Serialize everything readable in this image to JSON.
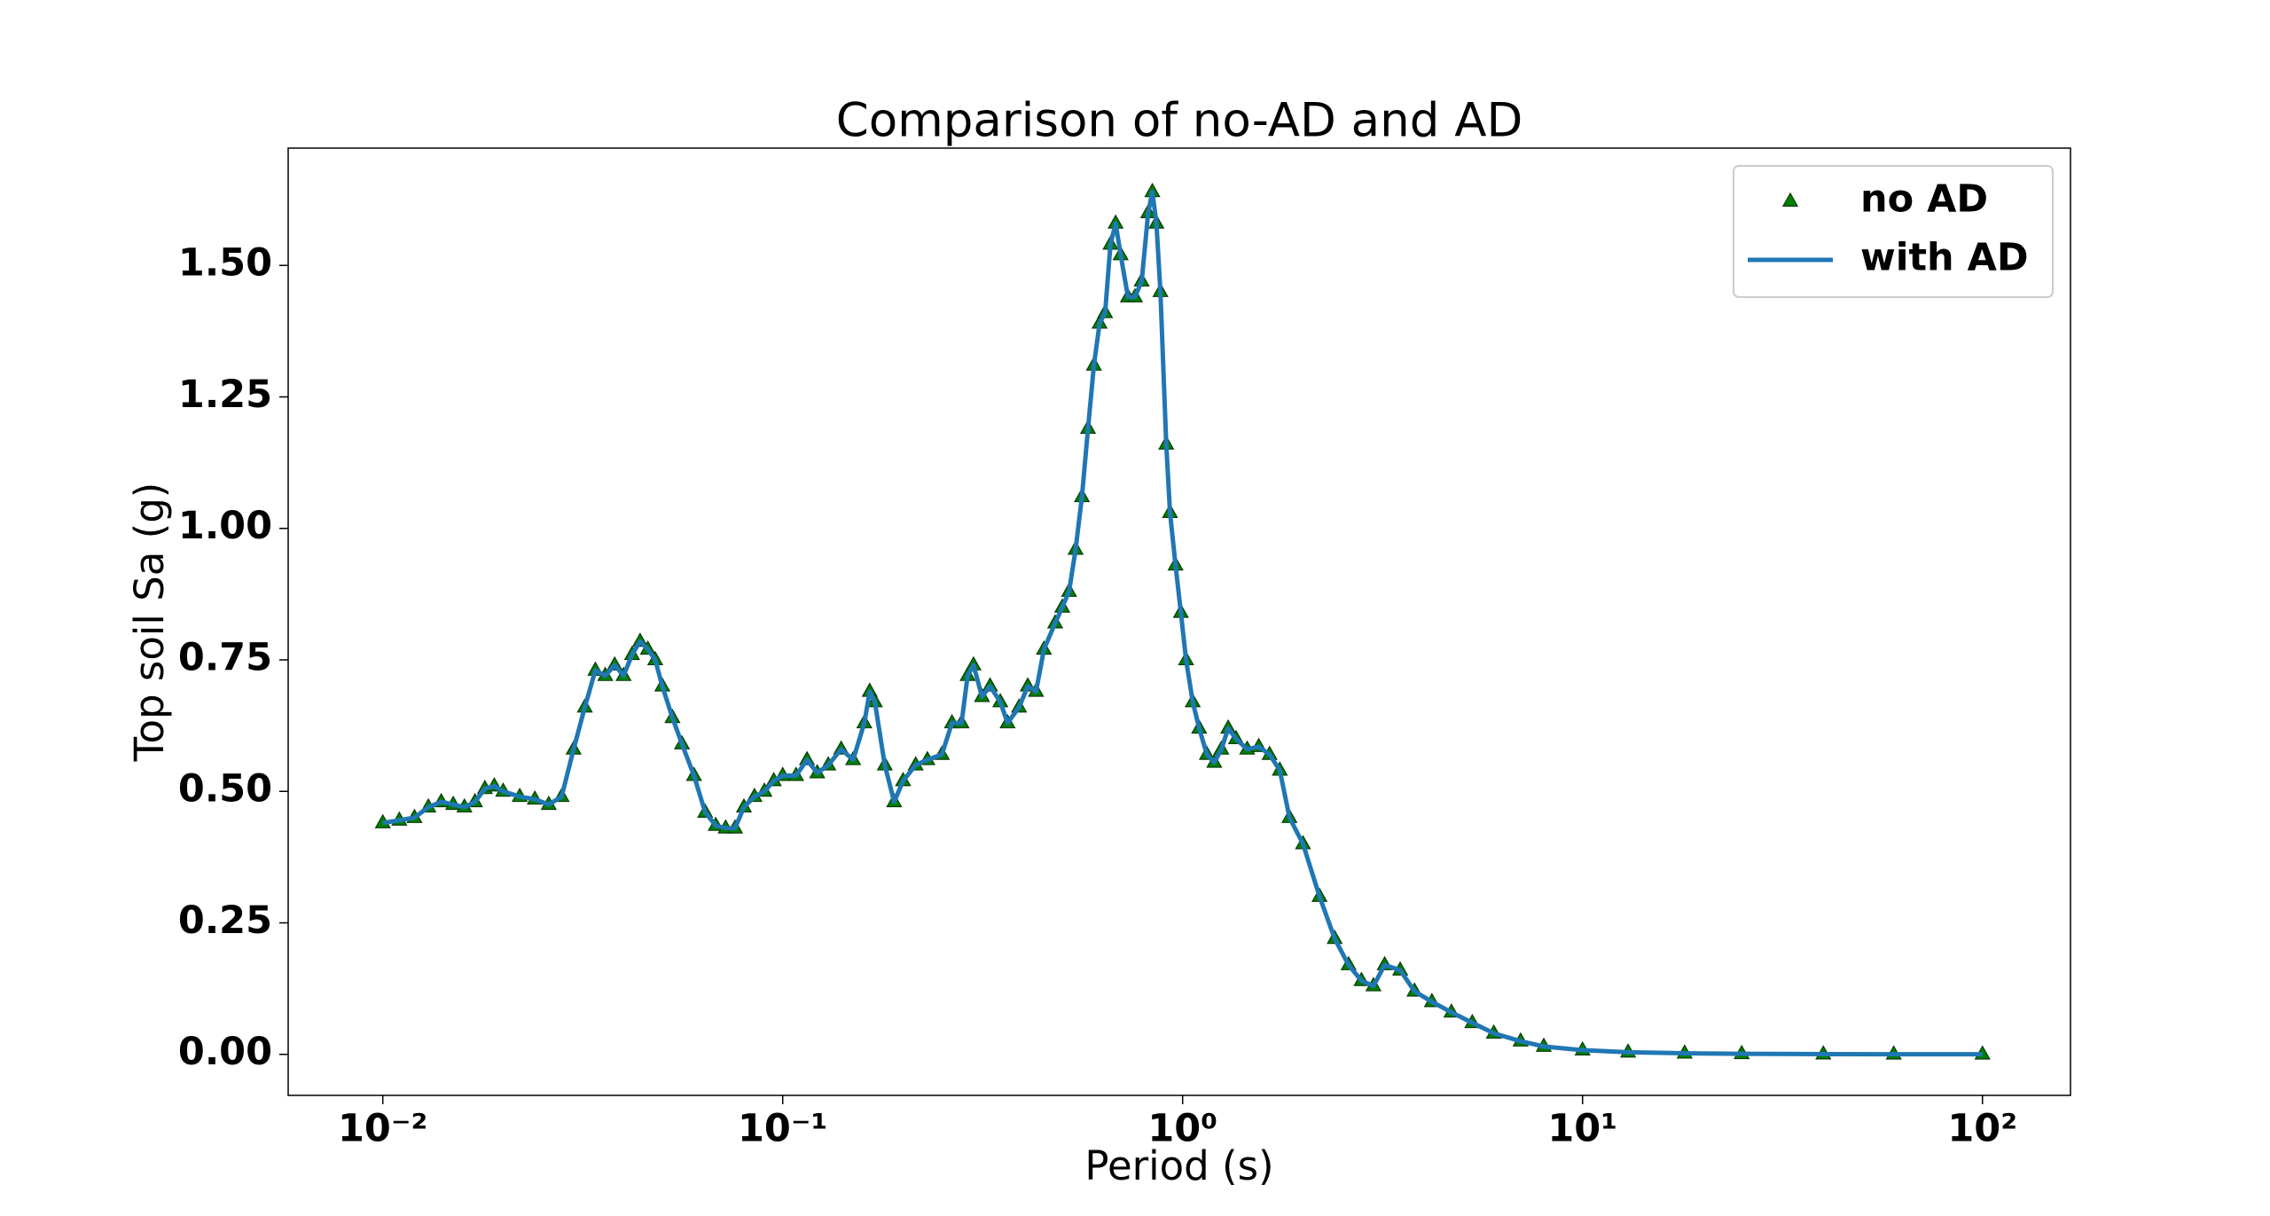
{
  "chart_data": {
    "type": "line",
    "title": "Comparison of no-AD and AD",
    "xlabel": "Period (s)",
    "ylabel": "Top soil Sa (g)",
    "xscale": "log",
    "legend": "upper right",
    "x": [
      0.01,
      0.011,
      0.012,
      0.013,
      0.014,
      0.015,
      0.016,
      0.017,
      0.018,
      0.019,
      0.02,
      0.022,
      0.024,
      0.026,
      0.028,
      0.03,
      0.032,
      0.034,
      0.036,
      0.038,
      0.04,
      0.042,
      0.044,
      0.046,
      0.048,
      0.05,
      0.053,
      0.056,
      0.06,
      0.064,
      0.068,
      0.072,
      0.076,
      0.08,
      0.085,
      0.09,
      0.095,
      0.1,
      0.108,
      0.115,
      0.122,
      0.13,
      0.14,
      0.15,
      0.16,
      0.165,
      0.17,
      0.18,
      0.19,
      0.2,
      0.215,
      0.23,
      0.25,
      0.265,
      0.28,
      0.29,
      0.3,
      0.315,
      0.33,
      0.35,
      0.365,
      0.39,
      0.41,
      0.43,
      0.45,
      0.48,
      0.5,
      0.52,
      0.54,
      0.56,
      0.58,
      0.6,
      0.62,
      0.64,
      0.66,
      0.68,
      0.7,
      0.73,
      0.76,
      0.79,
      0.82,
      0.84,
      0.86,
      0.88,
      0.91,
      0.93,
      0.96,
      0.99,
      1.02,
      1.06,
      1.1,
      1.15,
      1.2,
      1.25,
      1.3,
      1.36,
      1.45,
      1.55,
      1.65,
      1.75,
      1.85,
      2.0,
      2.2,
      2.4,
      2.6,
      2.8,
      3.0,
      3.2,
      3.5,
      3.8,
      4.2,
      4.7,
      5.3,
      6.0,
      7.0,
      8.0,
      10.0,
      13.0,
      18.0,
      25.0,
      40.0,
      60.0,
      100.0
    ],
    "series": [
      {
        "name": "no AD",
        "color": "#008000",
        "marker": "^",
        "values": [
          0.44,
          0.445,
          0.45,
          0.47,
          0.48,
          0.475,
          0.47,
          0.48,
          0.505,
          0.51,
          0.5,
          0.49,
          0.485,
          0.475,
          0.49,
          0.58,
          0.66,
          0.73,
          0.72,
          0.74,
          0.72,
          0.76,
          0.785,
          0.77,
          0.75,
          0.7,
          0.64,
          0.59,
          0.53,
          0.46,
          0.435,
          0.43,
          0.43,
          0.47,
          0.49,
          0.5,
          0.52,
          0.53,
          0.53,
          0.56,
          0.535,
          0.55,
          0.58,
          0.56,
          0.63,
          0.69,
          0.67,
          0.55,
          0.48,
          0.52,
          0.55,
          0.56,
          0.57,
          0.63,
          0.63,
          0.72,
          0.74,
          0.68,
          0.7,
          0.67,
          0.63,
          0.66,
          0.7,
          0.69,
          0.77,
          0.82,
          0.85,
          0.88,
          0.96,
          1.06,
          1.19,
          1.31,
          1.39,
          1.41,
          1.54,
          1.58,
          1.52,
          1.44,
          1.44,
          1.47,
          1.6,
          1.64,
          1.58,
          1.45,
          1.16,
          1.03,
          0.93,
          0.84,
          0.75,
          0.67,
          0.62,
          0.57,
          0.555,
          0.58,
          0.62,
          0.6,
          0.58,
          0.585,
          0.57,
          0.54,
          0.45,
          0.4,
          0.3,
          0.22,
          0.17,
          0.14,
          0.13,
          0.17,
          0.16,
          0.12,
          0.1,
          0.08,
          0.06,
          0.04,
          0.025,
          0.015,
          0.008,
          0.004,
          0.002,
          0.001,
          0.0005,
          0.0003,
          0.0002
        ]
      },
      {
        "name": "with AD",
        "color": "#1f77b4",
        "values": [
          0.44,
          0.445,
          0.45,
          0.47,
          0.48,
          0.475,
          0.47,
          0.48,
          0.505,
          0.51,
          0.5,
          0.49,
          0.485,
          0.475,
          0.49,
          0.58,
          0.66,
          0.73,
          0.72,
          0.74,
          0.72,
          0.76,
          0.785,
          0.77,
          0.75,
          0.7,
          0.64,
          0.59,
          0.53,
          0.46,
          0.435,
          0.43,
          0.43,
          0.47,
          0.49,
          0.5,
          0.52,
          0.53,
          0.53,
          0.56,
          0.535,
          0.55,
          0.58,
          0.56,
          0.63,
          0.69,
          0.67,
          0.55,
          0.48,
          0.52,
          0.55,
          0.56,
          0.57,
          0.63,
          0.63,
          0.72,
          0.74,
          0.68,
          0.7,
          0.67,
          0.63,
          0.66,
          0.7,
          0.69,
          0.77,
          0.82,
          0.85,
          0.88,
          0.96,
          1.06,
          1.19,
          1.31,
          1.39,
          1.41,
          1.54,
          1.58,
          1.52,
          1.44,
          1.44,
          1.47,
          1.6,
          1.64,
          1.58,
          1.45,
          1.16,
          1.03,
          0.93,
          0.84,
          0.75,
          0.67,
          0.62,
          0.57,
          0.555,
          0.58,
          0.62,
          0.6,
          0.58,
          0.585,
          0.57,
          0.54,
          0.45,
          0.4,
          0.3,
          0.22,
          0.17,
          0.14,
          0.13,
          0.17,
          0.16,
          0.12,
          0.1,
          0.08,
          0.06,
          0.04,
          0.025,
          0.015,
          0.008,
          0.004,
          0.002,
          0.001,
          0.0005,
          0.0003,
          0.0002
        ]
      }
    ],
    "xlim": [
      0.0058,
      166
    ],
    "ylim": [
      -0.078,
      1.723
    ],
    "xticks": [
      {
        "value": 0.01,
        "label": "10⁻²"
      },
      {
        "value": 0.1,
        "label": "10⁻¹"
      },
      {
        "value": 1,
        "label": "10⁰"
      },
      {
        "value": 10,
        "label": "10¹"
      },
      {
        "value": 100,
        "label": "10²"
      }
    ],
    "yticks": [
      {
        "value": 0,
        "label": "0.00"
      },
      0.25,
      {
        "value": 0.5,
        "label": "0.50"
      },
      0.75,
      {
        "value": 1,
        "label": "1.00"
      },
      1.25,
      {
        "value": 1.5,
        "label": "1.50"
      }
    ]
  }
}
